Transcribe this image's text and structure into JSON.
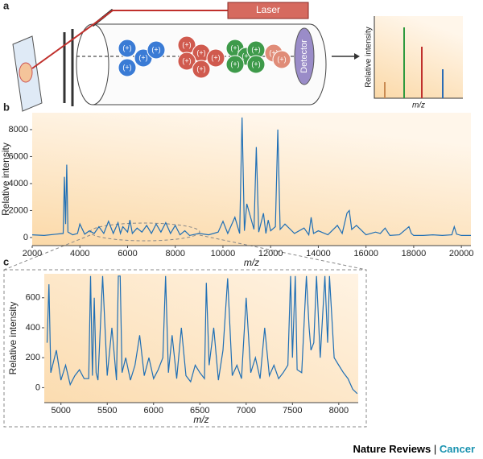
{
  "panels": [
    "a",
    "b",
    "c"
  ],
  "diagram": {
    "laser": "Laser",
    "detector": "Detector",
    "ion_label": "(+)",
    "inset_y_label": "Relative intensity",
    "inset_x_label": "m/z"
  },
  "chart_data": [
    {
      "type": "line",
      "x_label": "m/z",
      "y_label": "Relative intensity",
      "color": "#1f6fb5",
      "xlim": [
        2000,
        20400
      ],
      "xticks": [
        2000,
        4000,
        6000,
        8000,
        10000,
        12000,
        14000,
        16000,
        18000,
        20000
      ],
      "ylim": [
        -600,
        9250
      ],
      "yticks": [
        0,
        2000,
        4000,
        6000,
        8000
      ],
      "x": [
        2000,
        2500,
        3000,
        3300,
        3350,
        3400,
        3450,
        3500,
        3700,
        3900,
        4000,
        4200,
        4400,
        4600,
        4800,
        5000,
        5200,
        5400,
        5600,
        5700,
        5800,
        6000,
        6100,
        6200,
        6400,
        6600,
        6800,
        7000,
        7200,
        7400,
        7600,
        7800,
        8000,
        8200,
        8400,
        8600,
        9000,
        9400,
        9800,
        10000,
        10200,
        10500,
        10700,
        10800,
        10900,
        11000,
        11300,
        11400,
        11500,
        11700,
        11800,
        11900,
        12000,
        12200,
        12300,
        12400,
        12600,
        13000,
        13400,
        13600,
        13700,
        13800,
        14000,
        14400,
        14800,
        15000,
        15200,
        15300,
        15400,
        15600,
        16000,
        16400,
        16600,
        16800,
        17000,
        17400,
        17800,
        17900,
        18000,
        18400,
        18800,
        19200,
        19600,
        19700,
        19800,
        20000,
        20400
      ],
      "values": [
        200,
        150,
        250,
        300,
        4500,
        1000,
        5400,
        400,
        200,
        300,
        1000,
        250,
        500,
        300,
        800,
        300,
        1200,
        300,
        1100,
        300,
        800,
        400,
        1300,
        300,
        700,
        400,
        900,
        300,
        1000,
        400,
        1100,
        300,
        900,
        200,
        500,
        150,
        300,
        200,
        400,
        1200,
        300,
        1500,
        300,
        8900,
        500,
        2500,
        600,
        6700,
        400,
        1800,
        300,
        1300,
        500,
        800,
        8000,
        600,
        1000,
        300,
        700,
        200,
        1500,
        300,
        500,
        200,
        900,
        300,
        1800,
        2000,
        600,
        900,
        200,
        400,
        300,
        700,
        150,
        200,
        800,
        300,
        150,
        150,
        200,
        150,
        200,
        800,
        250,
        150,
        150
      ]
    },
    {
      "type": "line",
      "x_label": "m/z",
      "y_label": "Relative intensity",
      "color": "#1f6fb5",
      "xlim": [
        4820,
        8210
      ],
      "xticks": [
        5000,
        5500,
        6000,
        6500,
        7000,
        7500,
        8000
      ],
      "ylim": [
        -100,
        760
      ],
      "yticks": [
        0,
        200,
        400,
        600
      ],
      "x": [
        4850,
        4870,
        4890,
        4950,
        5000,
        5050,
        5100,
        5150,
        5200,
        5250,
        5300,
        5320,
        5340,
        5360,
        5380,
        5400,
        5450,
        5500,
        5550,
        5600,
        5620,
        5640,
        5660,
        5700,
        5750,
        5800,
        5850,
        5900,
        5950,
        6000,
        6050,
        6100,
        6130,
        6160,
        6200,
        6250,
        6300,
        6350,
        6400,
        6450,
        6500,
        6550,
        6570,
        6600,
        6650,
        6700,
        6750,
        6800,
        6850,
        6900,
        6950,
        7000,
        7050,
        7100,
        7150,
        7200,
        7250,
        7300,
        7350,
        7400,
        7450,
        7480,
        7500,
        7530,
        7550,
        7600,
        7650,
        7680,
        7700,
        7730,
        7760,
        7800,
        7850,
        7880,
        7900,
        7950,
        8000,
        8050,
        8100,
        8150,
        8200
      ],
      "values": [
        300,
        690,
        100,
        250,
        50,
        150,
        20,
        80,
        120,
        60,
        60,
        745,
        80,
        600,
        100,
        50,
        745,
        80,
        400,
        50,
        745,
        745,
        100,
        200,
        50,
        150,
        350,
        80,
        200,
        60,
        120,
        200,
        745,
        100,
        350,
        60,
        400,
        80,
        40,
        150,
        100,
        60,
        700,
        150,
        400,
        50,
        250,
        730,
        80,
        150,
        60,
        600,
        100,
        200,
        60,
        400,
        80,
        150,
        60,
        100,
        150,
        745,
        200,
        745,
        120,
        100,
        745,
        400,
        250,
        300,
        745,
        200,
        745,
        300,
        745,
        200,
        150,
        100,
        60,
        -10,
        -40
      ]
    }
  ],
  "footer": {
    "journal": "Nature Reviews",
    "separator": "|",
    "section": "Cancer"
  }
}
